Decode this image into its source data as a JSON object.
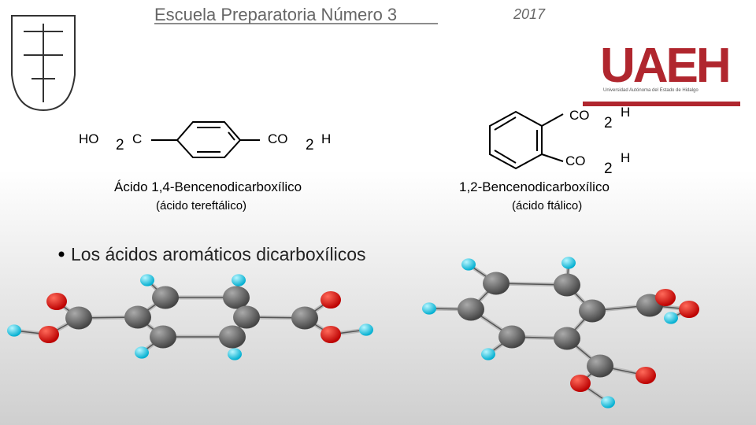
{
  "header": {
    "title": "Escuela Preparatoria Número 3",
    "year": "2017"
  },
  "logo": {
    "acronym": "UAEH",
    "name": "Universidad Autónoma del Estado de Hidalgo"
  },
  "left_formula": {
    "parts": [
      "HO",
      "2",
      "C",
      "CO",
      "2",
      "H"
    ],
    "name": "Ácido 1,4-Bencenodicarboxílico",
    "common_name": "(ácido tereftálico)"
  },
  "right_formula": {
    "parts": [
      "CO",
      "2",
      "H",
      "CO",
      "2",
      "H"
    ],
    "name": "1,2-Bencenodicarboxílico",
    "common_name": "(ácido ftálico)"
  },
  "bullet": "Los ácidos aromáticos dicarboxílicos"
}
